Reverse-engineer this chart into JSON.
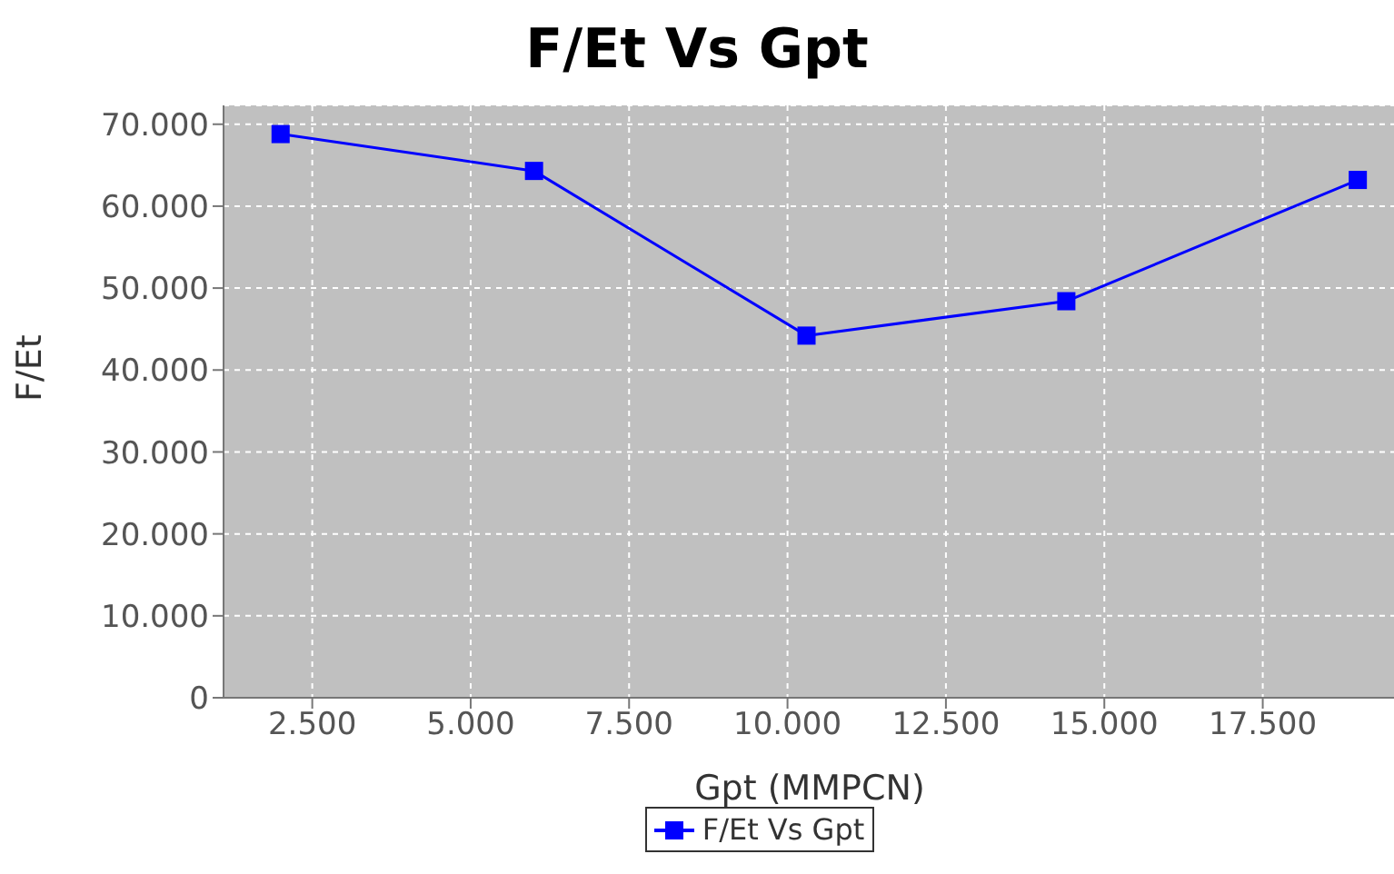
{
  "chart_data": {
    "type": "line",
    "title": "F/Et Vs Gpt",
    "xlabel": "Gpt (MMPCN)",
    "ylabel": "F/Et",
    "x": [
      2000,
      6000,
      10300,
      14400,
      19000
    ],
    "series": [
      {
        "name": "F/Et Vs Gpt",
        "color": "#0000ff",
        "values": [
          68800,
          64300,
          44200,
          48400,
          63200
        ]
      }
    ],
    "xlim": [
      1100,
      19600
    ],
    "xticks": [
      {
        "value": 2500,
        "label": "2.500"
      },
      {
        "value": 5000,
        "label": "5.000"
      },
      {
        "value": 7500,
        "label": "7.500"
      },
      {
        "value": 10000,
        "label": "10.000"
      },
      {
        "value": 12500,
        "label": "12.500"
      },
      {
        "value": 15000,
        "label": "15.000"
      },
      {
        "value": 17500,
        "label": "17.500"
      }
    ],
    "ylim": [
      0,
      72300
    ],
    "yticks": [
      0,
      {
        "value": 10000,
        "label": "10.000"
      },
      {
        "value": 20000,
        "label": "20.000"
      },
      {
        "value": 30000,
        "label": "30.000"
      },
      {
        "value": 40000,
        "label": "40.000"
      },
      {
        "value": 50000,
        "label": "50.000"
      },
      {
        "value": 60000,
        "label": "60.000"
      },
      {
        "value": 70000,
        "label": "70.000"
      }
    ],
    "grid": true,
    "legend": "bottom",
    "marker": "square",
    "line_style": "solid"
  }
}
